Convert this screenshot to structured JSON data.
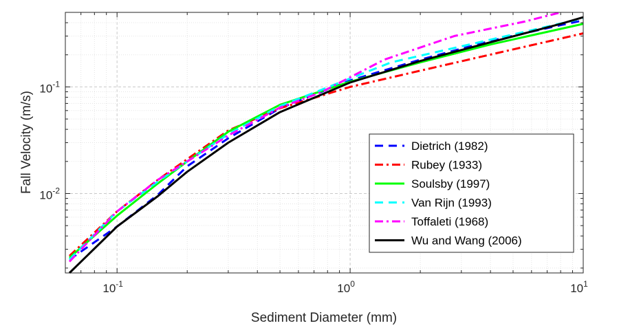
{
  "chart_data": {
    "type": "line",
    "title": "",
    "xlabel": "Sediment Diameter (mm)",
    "ylabel": "Fall Velocity (m/s)",
    "xscale": "log",
    "yscale": "log",
    "xlim": [
      0.06,
      10
    ],
    "ylim": [
      0.0018,
      0.5
    ],
    "grid": "major and minor, dotted",
    "legend_position": "lower-right",
    "x_ticks": [
      {
        "base": "10",
        "exp": "-1",
        "value": 0.1
      },
      {
        "base": "10",
        "exp": "0",
        "value": 1
      },
      {
        "base": "10",
        "exp": "1",
        "value": 10
      }
    ],
    "y_ticks": [
      {
        "base": "10",
        "exp": "-2",
        "value": 0.01
      },
      {
        "base": "10",
        "exp": "-1",
        "value": 0.1
      }
    ],
    "series": [
      {
        "name": "Dietrich (1982)",
        "color": "#0000ff",
        "style": "dashed",
        "x": [
          0.0625,
          0.1,
          0.15,
          0.2,
          0.3,
          0.5,
          1,
          2,
          4,
          8,
          10
        ],
        "y": [
          0.0024,
          0.0049,
          0.0098,
          0.018,
          0.033,
          0.063,
          0.115,
          0.18,
          0.27,
          0.38,
          0.42
        ]
      },
      {
        "name": "Rubey (1933)",
        "color": "#ff0000",
        "style": "dashdot",
        "x": [
          0.0625,
          0.1,
          0.15,
          0.2,
          0.3,
          0.5,
          1,
          2,
          4,
          8,
          10
        ],
        "y": [
          0.0026,
          0.0068,
          0.0135,
          0.021,
          0.039,
          0.063,
          0.1,
          0.142,
          0.201,
          0.284,
          0.318
        ]
      },
      {
        "name": "Soulsby (1997)",
        "color": "#00ff00",
        "style": "solid",
        "x": [
          0.0625,
          0.1,
          0.15,
          0.2,
          0.3,
          0.5,
          1,
          2,
          4,
          8,
          10
        ],
        "y": [
          0.0025,
          0.0062,
          0.0125,
          0.02,
          0.038,
          0.068,
          0.112,
          0.17,
          0.25,
          0.35,
          0.39
        ]
      },
      {
        "name": "Van Rijn (1993)",
        "color": "#00ffff",
        "style": "dashed",
        "x": [
          0.0625,
          0.1,
          0.15,
          0.2,
          0.3,
          0.5,
          1,
          1.5,
          3,
          6,
          10
        ],
        "y": [
          0.0024,
          0.0068,
          0.013,
          0.02,
          0.036,
          0.066,
          0.12,
          0.17,
          0.24,
          0.34,
          0.44
        ]
      },
      {
        "name": "Toffaleti (1968)",
        "color": "#ff00ff",
        "style": "dashdot",
        "x": [
          0.0625,
          0.1,
          0.15,
          0.2,
          0.3,
          0.5,
          0.75,
          1.4,
          2.8,
          5.6,
          8
        ],
        "y": [
          0.0023,
          0.0068,
          0.0135,
          0.02,
          0.035,
          0.064,
          0.089,
          0.18,
          0.3,
          0.41,
          0.5
        ]
      },
      {
        "name": "Wu and Wang (2006)",
        "color": "#000000",
        "style": "solid",
        "x": [
          0.0625,
          0.1,
          0.15,
          0.2,
          0.3,
          0.5,
          1,
          2,
          4,
          8,
          10
        ],
        "y": [
          0.0018,
          0.0049,
          0.0095,
          0.016,
          0.03,
          0.058,
          0.11,
          0.175,
          0.262,
          0.39,
          0.45
        ]
      }
    ]
  }
}
